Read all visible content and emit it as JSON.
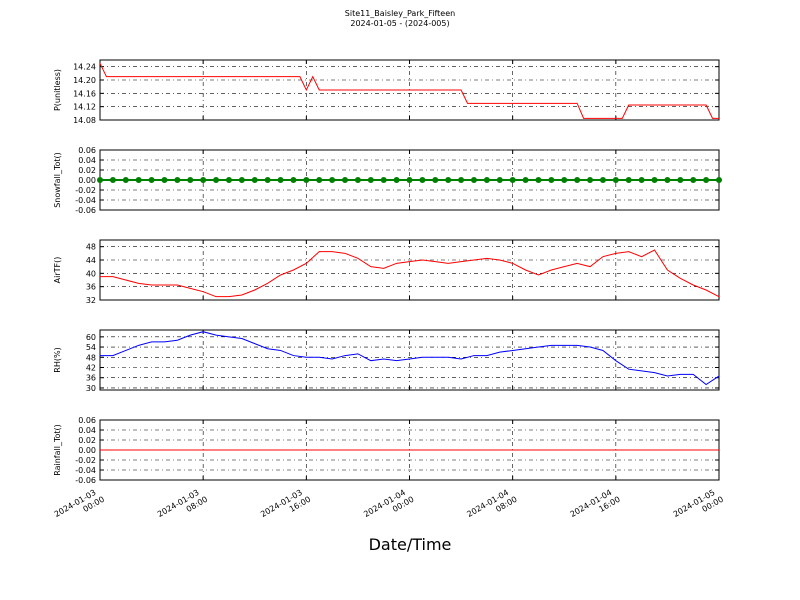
{
  "figure": {
    "title": "Site11_Baisley_Park_Fifteen",
    "subtitle": "2024-01-05 - (2024-005)",
    "x_label": "Date/Time"
  },
  "chart_data": [
    {
      "type": "line",
      "y_label": "P(unitless)",
      "x": [
        "2024-01-03 00:00",
        "2024-01-03 00:30",
        "2024-01-03 15:30",
        "2024-01-03 16:00",
        "2024-01-03 16:30",
        "2024-01-03 17:00",
        "2024-01-04 04:00",
        "2024-01-04 04:30",
        "2024-01-04 13:00",
        "2024-01-04 13:30",
        "2024-01-04 16:30",
        "2024-01-04 17:00",
        "2024-01-04 23:00",
        "2024-01-04 23:30",
        "2024-01-05 00:00"
      ],
      "xlim": [
        "2024-01-03 00:00",
        "2024-01-05 00:00"
      ],
      "xticks": [
        "2024-01-03 00:00",
        "2024-01-03 08:00",
        "2024-01-03 16:00",
        "2024-01-04 00:00",
        "2024-01-04 08:00",
        "2024-01-04 16:00",
        "2024-01-05 00:00"
      ],
      "ylim": [
        14.08,
        14.26
      ],
      "yticks": [
        14.08,
        14.12,
        14.16,
        {
          "value": 14.2,
          "label": "14.20"
        },
        14.24
      ],
      "grid": true,
      "series": [
        {
          "color": "#ff0000",
          "values": [
            14.25,
            14.21,
            14.21,
            14.17,
            14.21,
            14.17,
            14.17,
            14.13,
            14.13,
            14.085,
            14.085,
            14.125,
            14.125,
            14.085,
            14.085
          ]
        }
      ]
    },
    {
      "type": "line",
      "y_label": "Snowfall_Tot()",
      "marker": "o",
      "x": [
        "2024-01-03 00:00",
        "2024-01-03 01:00",
        "2024-01-03 02:00",
        "2024-01-03 03:00",
        "2024-01-03 04:00",
        "2024-01-03 05:00",
        "2024-01-03 06:00",
        "2024-01-03 07:00",
        "2024-01-03 08:00",
        "2024-01-03 09:00",
        "2024-01-03 10:00",
        "2024-01-03 11:00",
        "2024-01-03 12:00",
        "2024-01-03 13:00",
        "2024-01-03 14:00",
        "2024-01-03 15:00",
        "2024-01-03 16:00",
        "2024-01-03 17:00",
        "2024-01-03 18:00",
        "2024-01-03 19:00",
        "2024-01-03 20:00",
        "2024-01-03 21:00",
        "2024-01-03 22:00",
        "2024-01-03 23:00",
        "2024-01-04 00:00",
        "2024-01-04 01:00",
        "2024-01-04 02:00",
        "2024-01-04 03:00",
        "2024-01-04 04:00",
        "2024-01-04 05:00",
        "2024-01-04 06:00",
        "2024-01-04 07:00",
        "2024-01-04 08:00",
        "2024-01-04 09:00",
        "2024-01-04 10:00",
        "2024-01-04 11:00",
        "2024-01-04 12:00",
        "2024-01-04 13:00",
        "2024-01-04 14:00",
        "2024-01-04 15:00",
        "2024-01-04 16:00",
        "2024-01-04 17:00",
        "2024-01-04 18:00",
        "2024-01-04 19:00",
        "2024-01-04 20:00",
        "2024-01-04 21:00",
        "2024-01-04 22:00",
        "2024-01-04 23:00",
        "2024-01-05 00:00"
      ],
      "xlim": [
        "2024-01-03 00:00",
        "2024-01-05 00:00"
      ],
      "xticks": [
        "2024-01-03 00:00",
        "2024-01-03 08:00",
        "2024-01-03 16:00",
        "2024-01-04 00:00",
        "2024-01-04 08:00",
        "2024-01-04 16:00",
        "2024-01-05 00:00"
      ],
      "ylim": [
        -0.06,
        0.06
      ],
      "yticks": [
        -0.06,
        -0.04,
        -0.02,
        {
          "value": 0,
          "label": "0.00"
        },
        0.02,
        0.04,
        0.06
      ],
      "grid": true,
      "series": [
        {
          "color": "#008000",
          "values": [
            0,
            0,
            0,
            0,
            0,
            0,
            0,
            0,
            0,
            0,
            0,
            0,
            0,
            0,
            0,
            0,
            0,
            0,
            0,
            0,
            0,
            0,
            0,
            0,
            0,
            0,
            0,
            0,
            0,
            0,
            0,
            0,
            0,
            0,
            0,
            0,
            0,
            0,
            0,
            0,
            0,
            0,
            0,
            0,
            0,
            0,
            0,
            0,
            0
          ]
        }
      ]
    },
    {
      "type": "line",
      "y_label": "AirTF()",
      "x": [
        "2024-01-03 00:00",
        "2024-01-03 01:00",
        "2024-01-03 02:00",
        "2024-01-03 03:00",
        "2024-01-03 04:00",
        "2024-01-03 05:00",
        "2024-01-03 06:00",
        "2024-01-03 07:00",
        "2024-01-03 08:00",
        "2024-01-03 09:00",
        "2024-01-03 10:00",
        "2024-01-03 11:00",
        "2024-01-03 12:00",
        "2024-01-03 13:00",
        "2024-01-03 14:00",
        "2024-01-03 15:00",
        "2024-01-03 16:00",
        "2024-01-03 17:00",
        "2024-01-03 18:00",
        "2024-01-03 19:00",
        "2024-01-03 20:00",
        "2024-01-03 21:00",
        "2024-01-03 22:00",
        "2024-01-03 23:00",
        "2024-01-04 00:00",
        "2024-01-04 01:00",
        "2024-01-04 02:00",
        "2024-01-04 03:00",
        "2024-01-04 04:00",
        "2024-01-04 05:00",
        "2024-01-04 06:00",
        "2024-01-04 07:00",
        "2024-01-04 08:00",
        "2024-01-04 09:00",
        "2024-01-04 10:00",
        "2024-01-04 11:00",
        "2024-01-04 12:00",
        "2024-01-04 13:00",
        "2024-01-04 14:00",
        "2024-01-04 15:00",
        "2024-01-04 16:00",
        "2024-01-04 17:00",
        "2024-01-04 18:00",
        "2024-01-04 19:00",
        "2024-01-04 20:00",
        "2024-01-04 21:00",
        "2024-01-04 22:00",
        "2024-01-04 23:00",
        "2024-01-05 00:00"
      ],
      "xlim": [
        "2024-01-03 00:00",
        "2024-01-05 00:00"
      ],
      "xticks": [
        "2024-01-03 00:00",
        "2024-01-03 08:00",
        "2024-01-03 16:00",
        "2024-01-04 00:00",
        "2024-01-04 08:00",
        "2024-01-04 16:00",
        "2024-01-05 00:00"
      ],
      "ylim": [
        32,
        50
      ],
      "yticks": [
        32,
        36,
        40,
        44,
        48
      ],
      "grid": true,
      "series": [
        {
          "color": "#ff0000",
          "values": [
            39,
            39,
            38,
            37,
            36.5,
            36.5,
            36.5,
            35.5,
            34.5,
            33,
            33,
            33.5,
            35,
            37,
            39.5,
            41,
            43,
            46.5,
            46.5,
            46,
            44.5,
            42,
            41.5,
            43,
            43.5,
            44,
            43.5,
            43,
            43.5,
            44,
            44.5,
            44,
            43,
            41,
            39.5,
            41,
            42,
            43,
            42,
            45,
            46,
            46.5,
            45,
            47,
            41,
            38.5,
            36.5,
            35,
            33
          ]
        }
      ]
    },
    {
      "type": "line",
      "y_label": "RH(%)",
      "x": [
        "2024-01-03 00:00",
        "2024-01-03 01:00",
        "2024-01-03 02:00",
        "2024-01-03 03:00",
        "2024-01-03 04:00",
        "2024-01-03 05:00",
        "2024-01-03 06:00",
        "2024-01-03 07:00",
        "2024-01-03 08:00",
        "2024-01-03 09:00",
        "2024-01-03 10:00",
        "2024-01-03 11:00",
        "2024-01-03 12:00",
        "2024-01-03 13:00",
        "2024-01-03 14:00",
        "2024-01-03 15:00",
        "2024-01-03 16:00",
        "2024-01-03 17:00",
        "2024-01-03 18:00",
        "2024-01-03 19:00",
        "2024-01-03 20:00",
        "2024-01-03 21:00",
        "2024-01-03 22:00",
        "2024-01-03 23:00",
        "2024-01-04 00:00",
        "2024-01-04 01:00",
        "2024-01-04 02:00",
        "2024-01-04 03:00",
        "2024-01-04 04:00",
        "2024-01-04 05:00",
        "2024-01-04 06:00",
        "2024-01-04 07:00",
        "2024-01-04 08:00",
        "2024-01-04 09:00",
        "2024-01-04 10:00",
        "2024-01-04 11:00",
        "2024-01-04 12:00",
        "2024-01-04 13:00",
        "2024-01-04 14:00",
        "2024-01-04 15:00",
        "2024-01-04 16:00",
        "2024-01-04 17:00",
        "2024-01-04 18:00",
        "2024-01-04 19:00",
        "2024-01-04 20:00",
        "2024-01-04 21:00",
        "2024-01-04 22:00",
        "2024-01-04 23:00",
        "2024-01-05 00:00"
      ],
      "xlim": [
        "2024-01-03 00:00",
        "2024-01-05 00:00"
      ],
      "xticks": [
        "2024-01-03 00:00",
        "2024-01-03 08:00",
        "2024-01-03 16:00",
        "2024-01-04 00:00",
        "2024-01-04 08:00",
        "2024-01-04 16:00",
        "2024-01-05 00:00"
      ],
      "ylim": [
        28.8,
        64
      ],
      "yticks": [
        30,
        36,
        42,
        48,
        54,
        60
      ],
      "grid": true,
      "series": [
        {
          "color": "#0000ff",
          "values": [
            49,
            49,
            52,
            55,
            57,
            57,
            58,
            61,
            63,
            61,
            60,
            59,
            56,
            53,
            52,
            49,
            48,
            48,
            47,
            49,
            50,
            46,
            47,
            46,
            47,
            48,
            48,
            48,
            47,
            49,
            49,
            51,
            52,
            53,
            54,
            55,
            55,
            55,
            54,
            52,
            46,
            41,
            40,
            39,
            37,
            38,
            38,
            32,
            37
          ]
        }
      ]
    },
    {
      "type": "line",
      "y_label": "Rainfall_Tot()",
      "x": [
        "2024-01-03 00:00",
        "2024-01-03 01:00",
        "2024-01-03 02:00",
        "2024-01-03 03:00",
        "2024-01-03 04:00",
        "2024-01-03 05:00",
        "2024-01-03 06:00",
        "2024-01-03 07:00",
        "2024-01-03 08:00",
        "2024-01-03 09:00",
        "2024-01-03 10:00",
        "2024-01-03 11:00",
        "2024-01-03 12:00",
        "2024-01-03 13:00",
        "2024-01-03 14:00",
        "2024-01-03 15:00",
        "2024-01-03 16:00",
        "2024-01-03 17:00",
        "2024-01-03 18:00",
        "2024-01-03 19:00",
        "2024-01-03 20:00",
        "2024-01-03 21:00",
        "2024-01-03 22:00",
        "2024-01-03 23:00",
        "2024-01-04 00:00",
        "2024-01-04 01:00",
        "2024-01-04 02:00",
        "2024-01-04 03:00",
        "2024-01-04 04:00",
        "2024-01-04 05:00",
        "2024-01-04 06:00",
        "2024-01-04 07:00",
        "2024-01-04 08:00",
        "2024-01-04 09:00",
        "2024-01-04 10:00",
        "2024-01-04 11:00",
        "2024-01-04 12:00",
        "2024-01-04 13:00",
        "2024-01-04 14:00",
        "2024-01-04 15:00",
        "2024-01-04 16:00",
        "2024-01-04 17:00",
        "2024-01-04 18:00",
        "2024-01-04 19:00",
        "2024-01-04 20:00",
        "2024-01-04 21:00",
        "2024-01-04 22:00",
        "2024-01-04 23:00",
        "2024-01-05 00:00"
      ],
      "xlim": [
        "2024-01-03 00:00",
        "2024-01-05 00:00"
      ],
      "xticks": [
        {
          "value": "2024-01-03 00:00",
          "label": "2024-01-03\n00:00"
        },
        {
          "value": "2024-01-03 08:00",
          "label": "2024-01-03\n08:00"
        },
        {
          "value": "2024-01-03 16:00",
          "label": "2024-01-03\n16:00"
        },
        {
          "value": "2024-01-04 00:00",
          "label": "2024-01-04\n00:00"
        },
        {
          "value": "2024-01-04 08:00",
          "label": "2024-01-04\n08:00"
        },
        {
          "value": "2024-01-04 16:00",
          "label": "2024-01-04\n16:00"
        },
        {
          "value": "2024-01-05 00:00",
          "label": "2024-01-05\n00:00"
        }
      ],
      "ylim": [
        -0.06,
        0.06
      ],
      "yticks": [
        -0.06,
        -0.04,
        -0.02,
        {
          "value": 0,
          "label": "0.00"
        },
        0.02,
        0.04,
        0.06
      ],
      "grid": true,
      "series": [
        {
          "color": "#ff0000",
          "values": [
            0,
            0,
            0,
            0,
            0,
            0,
            0,
            0,
            0,
            0,
            0,
            0,
            0,
            0,
            0,
            0,
            0,
            0,
            0,
            0,
            0,
            0,
            0,
            0,
            0,
            0,
            0,
            0,
            0,
            0,
            0,
            0,
            0,
            0,
            0,
            0,
            0,
            0,
            0,
            0,
            0,
            0,
            0,
            0,
            0,
            0,
            0,
            0,
            0
          ]
        }
      ]
    }
  ]
}
